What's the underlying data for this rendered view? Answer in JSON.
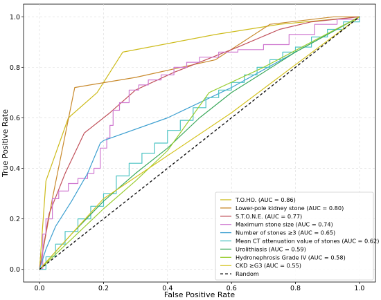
{
  "chart_data": {
    "type": "line",
    "xlabel": "False Positive Rate",
    "ylabel": "True Positive Rate",
    "xlim": [
      -0.05,
      1.05
    ],
    "ylim": [
      -0.05,
      1.05
    ],
    "xticks": [
      "0.0",
      "0.2",
      "0.4",
      "0.6",
      "0.8",
      "1.0"
    ],
    "yticks": [
      "0.0",
      "0.2",
      "0.4",
      "0.6",
      "0.8",
      "1.0"
    ],
    "grid": true,
    "legend_position": "lower-right",
    "series": [
      {
        "name": "T.O.HO. (AUC = 0.86)",
        "color": "#cdbb1a",
        "step": false,
        "points": [
          [
            0,
            0
          ],
          [
            0.02,
            0.35
          ],
          [
            0.09,
            0.6
          ],
          [
            0.18,
            0.7
          ],
          [
            0.26,
            0.86
          ],
          [
            0.55,
            0.93
          ],
          [
            0.75,
            0.97
          ],
          [
            1,
            1
          ]
        ]
      },
      {
        "name": "Lower-pole kidney stone (AUC = 0.80)",
        "color": "#c8892b",
        "step": false,
        "points": [
          [
            0,
            0
          ],
          [
            0.04,
            0.28
          ],
          [
            0.11,
            0.72
          ],
          [
            0.3,
            0.76
          ],
          [
            0.55,
            0.83
          ],
          [
            0.72,
            0.97
          ],
          [
            0.92,
            1
          ],
          [
            1,
            1
          ]
        ]
      },
      {
        "name": "S.T.O.N.E. (AUC = 0.77)",
        "color": "#c0505a",
        "step": false,
        "points": [
          [
            0,
            0
          ],
          [
            0.03,
            0.22
          ],
          [
            0.08,
            0.38
          ],
          [
            0.14,
            0.54
          ],
          [
            0.22,
            0.62
          ],
          [
            0.3,
            0.71
          ],
          [
            0.42,
            0.78
          ],
          [
            0.52,
            0.83
          ],
          [
            0.62,
            0.88
          ],
          [
            0.75,
            0.95
          ],
          [
            0.85,
            0.98
          ],
          [
            1,
            1
          ]
        ]
      },
      {
        "name": "Maximum stone size (AUC = 0.74)",
        "color": "#cf78d0",
        "step": true,
        "points": [
          [
            0,
            0
          ],
          [
            0.01,
            0.14
          ],
          [
            0.02,
            0.2
          ],
          [
            0.04,
            0.28
          ],
          [
            0.06,
            0.31
          ],
          [
            0.09,
            0.34
          ],
          [
            0.12,
            0.36
          ],
          [
            0.15,
            0.38
          ],
          [
            0.17,
            0.4
          ],
          [
            0.19,
            0.48
          ],
          [
            0.21,
            0.52
          ],
          [
            0.22,
            0.57
          ],
          [
            0.23,
            0.63
          ],
          [
            0.25,
            0.66
          ],
          [
            0.28,
            0.71
          ],
          [
            0.31,
            0.73
          ],
          [
            0.34,
            0.75
          ],
          [
            0.38,
            0.77
          ],
          [
            0.42,
            0.8
          ],
          [
            0.46,
            0.82
          ],
          [
            0.5,
            0.84
          ],
          [
            0.56,
            0.86
          ],
          [
            0.62,
            0.87
          ],
          [
            0.7,
            0.89
          ],
          [
            0.78,
            0.93
          ],
          [
            0.86,
            0.97
          ],
          [
            0.93,
            0.99
          ],
          [
            1,
            1
          ]
        ]
      },
      {
        "name": "Number of stones ≥3 (AUC = 0.65)",
        "color": "#3c9fd0",
        "step": false,
        "points": [
          [
            0,
            0
          ],
          [
            0.02,
            0.08
          ],
          [
            0.05,
            0.17
          ],
          [
            0.1,
            0.27
          ],
          [
            0.15,
            0.38
          ],
          [
            0.19,
            0.5
          ],
          [
            0.2,
            0.51
          ],
          [
            0.4,
            0.6
          ],
          [
            0.6,
            0.72
          ],
          [
            0.8,
            0.86
          ],
          [
            1,
            1
          ]
        ]
      },
      {
        "name": "Mean CT attenuation value of stones (AUC = 0.62)",
        "color": "#4cc3c3",
        "step": true,
        "points": [
          [
            0,
            0
          ],
          [
            0.02,
            0.05
          ],
          [
            0.05,
            0.1
          ],
          [
            0.08,
            0.15
          ],
          [
            0.12,
            0.2
          ],
          [
            0.16,
            0.25
          ],
          [
            0.2,
            0.3
          ],
          [
            0.24,
            0.37
          ],
          [
            0.28,
            0.42
          ],
          [
            0.32,
            0.46
          ],
          [
            0.36,
            0.5
          ],
          [
            0.4,
            0.55
          ],
          [
            0.44,
            0.59
          ],
          [
            0.48,
            0.64
          ],
          [
            0.52,
            0.68
          ],
          [
            0.56,
            0.71
          ],
          [
            0.6,
            0.74
          ],
          [
            0.64,
            0.77
          ],
          [
            0.68,
            0.8
          ],
          [
            0.72,
            0.83
          ],
          [
            0.76,
            0.86
          ],
          [
            0.8,
            0.88
          ],
          [
            0.85,
            0.92
          ],
          [
            0.9,
            0.95
          ],
          [
            0.95,
            0.98
          ],
          [
            1,
            1
          ]
        ]
      },
      {
        "name": "Urolithiasis (AUC = 0.59)",
        "color": "#3aa85a",
        "step": false,
        "points": [
          [
            0,
            0
          ],
          [
            0.1,
            0.14
          ],
          [
            0.2,
            0.27
          ],
          [
            0.3,
            0.38
          ],
          [
            0.4,
            0.48
          ],
          [
            0.5,
            0.6
          ],
          [
            0.6,
            0.7
          ],
          [
            0.7,
            0.78
          ],
          [
            0.8,
            0.86
          ],
          [
            0.9,
            0.93
          ],
          [
            1,
            1
          ]
        ]
      },
      {
        "name": "Hydronephrosis Grade IV (AUC = 0.58)",
        "color": "#9acd32",
        "step": false,
        "points": [
          [
            0,
            0
          ],
          [
            0.1,
            0.12
          ],
          [
            0.2,
            0.24
          ],
          [
            0.3,
            0.35
          ],
          [
            0.4,
            0.47
          ],
          [
            0.53,
            0.7
          ],
          [
            0.7,
            0.8
          ],
          [
            0.85,
            0.9
          ],
          [
            1,
            1
          ]
        ]
      },
      {
        "name": "CKD ≥G3 (AUC = 0.55)",
        "color": "#d4c21c",
        "step": false,
        "points": [
          [
            0,
            0
          ],
          [
            0.2,
            0.28
          ],
          [
            0.4,
            0.45
          ],
          [
            0.6,
            0.62
          ],
          [
            0.8,
            0.81
          ],
          [
            1,
            1
          ]
        ]
      },
      {
        "name": "Random",
        "color": "#000000",
        "dashed": true,
        "step": false,
        "points": [
          [
            0,
            0
          ],
          [
            1,
            1
          ]
        ]
      }
    ]
  }
}
